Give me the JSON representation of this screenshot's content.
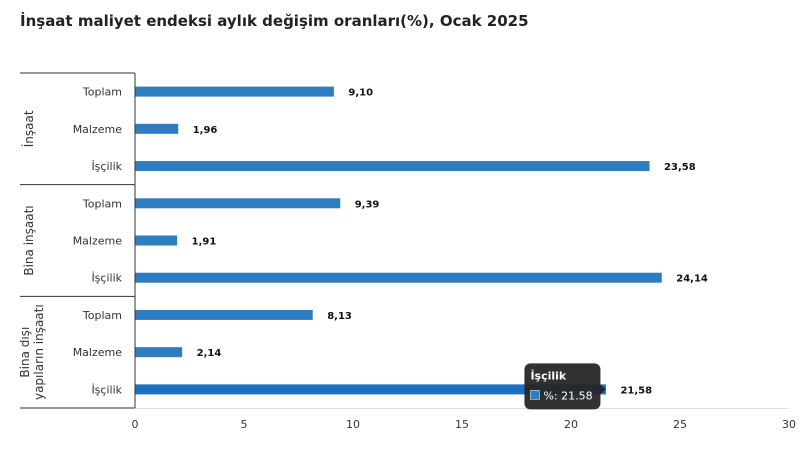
{
  "chart_data": {
    "type": "bar",
    "orientation": "horizontal",
    "title": "İnşaat maliyet endeksi aylık değişim oranları(%), Ocak 2025",
    "groups": [
      {
        "name": "İnşaat",
        "categories": [
          "Toplam",
          "Malzeme",
          "İşçilik"
        ],
        "values": [
          9.1,
          1.96,
          23.58
        ],
        "labels": [
          "9,10",
          "1,96",
          "23,58"
        ]
      },
      {
        "name": "Bina inşaatı",
        "categories": [
          "Toplam",
          "Malzeme",
          "İşçilik"
        ],
        "values": [
          9.39,
          1.91,
          24.14
        ],
        "labels": [
          "9,39",
          "1,91",
          "24,14"
        ]
      },
      {
        "name": "Bina dışı yapıların inşaatı",
        "name_lines": [
          "Bina dışı",
          "yapıların inşaatı"
        ],
        "categories": [
          "Toplam",
          "Malzeme",
          "İşçilik"
        ],
        "values": [
          8.13,
          2.14,
          21.58
        ],
        "labels": [
          "8,13",
          "2,14",
          "21,58"
        ]
      }
    ],
    "xlim": [
      0,
      30
    ],
    "xticks": [
      0,
      5,
      10,
      15,
      20,
      25,
      30
    ],
    "grid": false,
    "bar_color": "#2f7dc1",
    "highlight_color": "#1f6fbf",
    "tooltip": {
      "group_index": 2,
      "bar_index": 2,
      "title": "İşçilik",
      "text": "%: 21.58"
    }
  }
}
